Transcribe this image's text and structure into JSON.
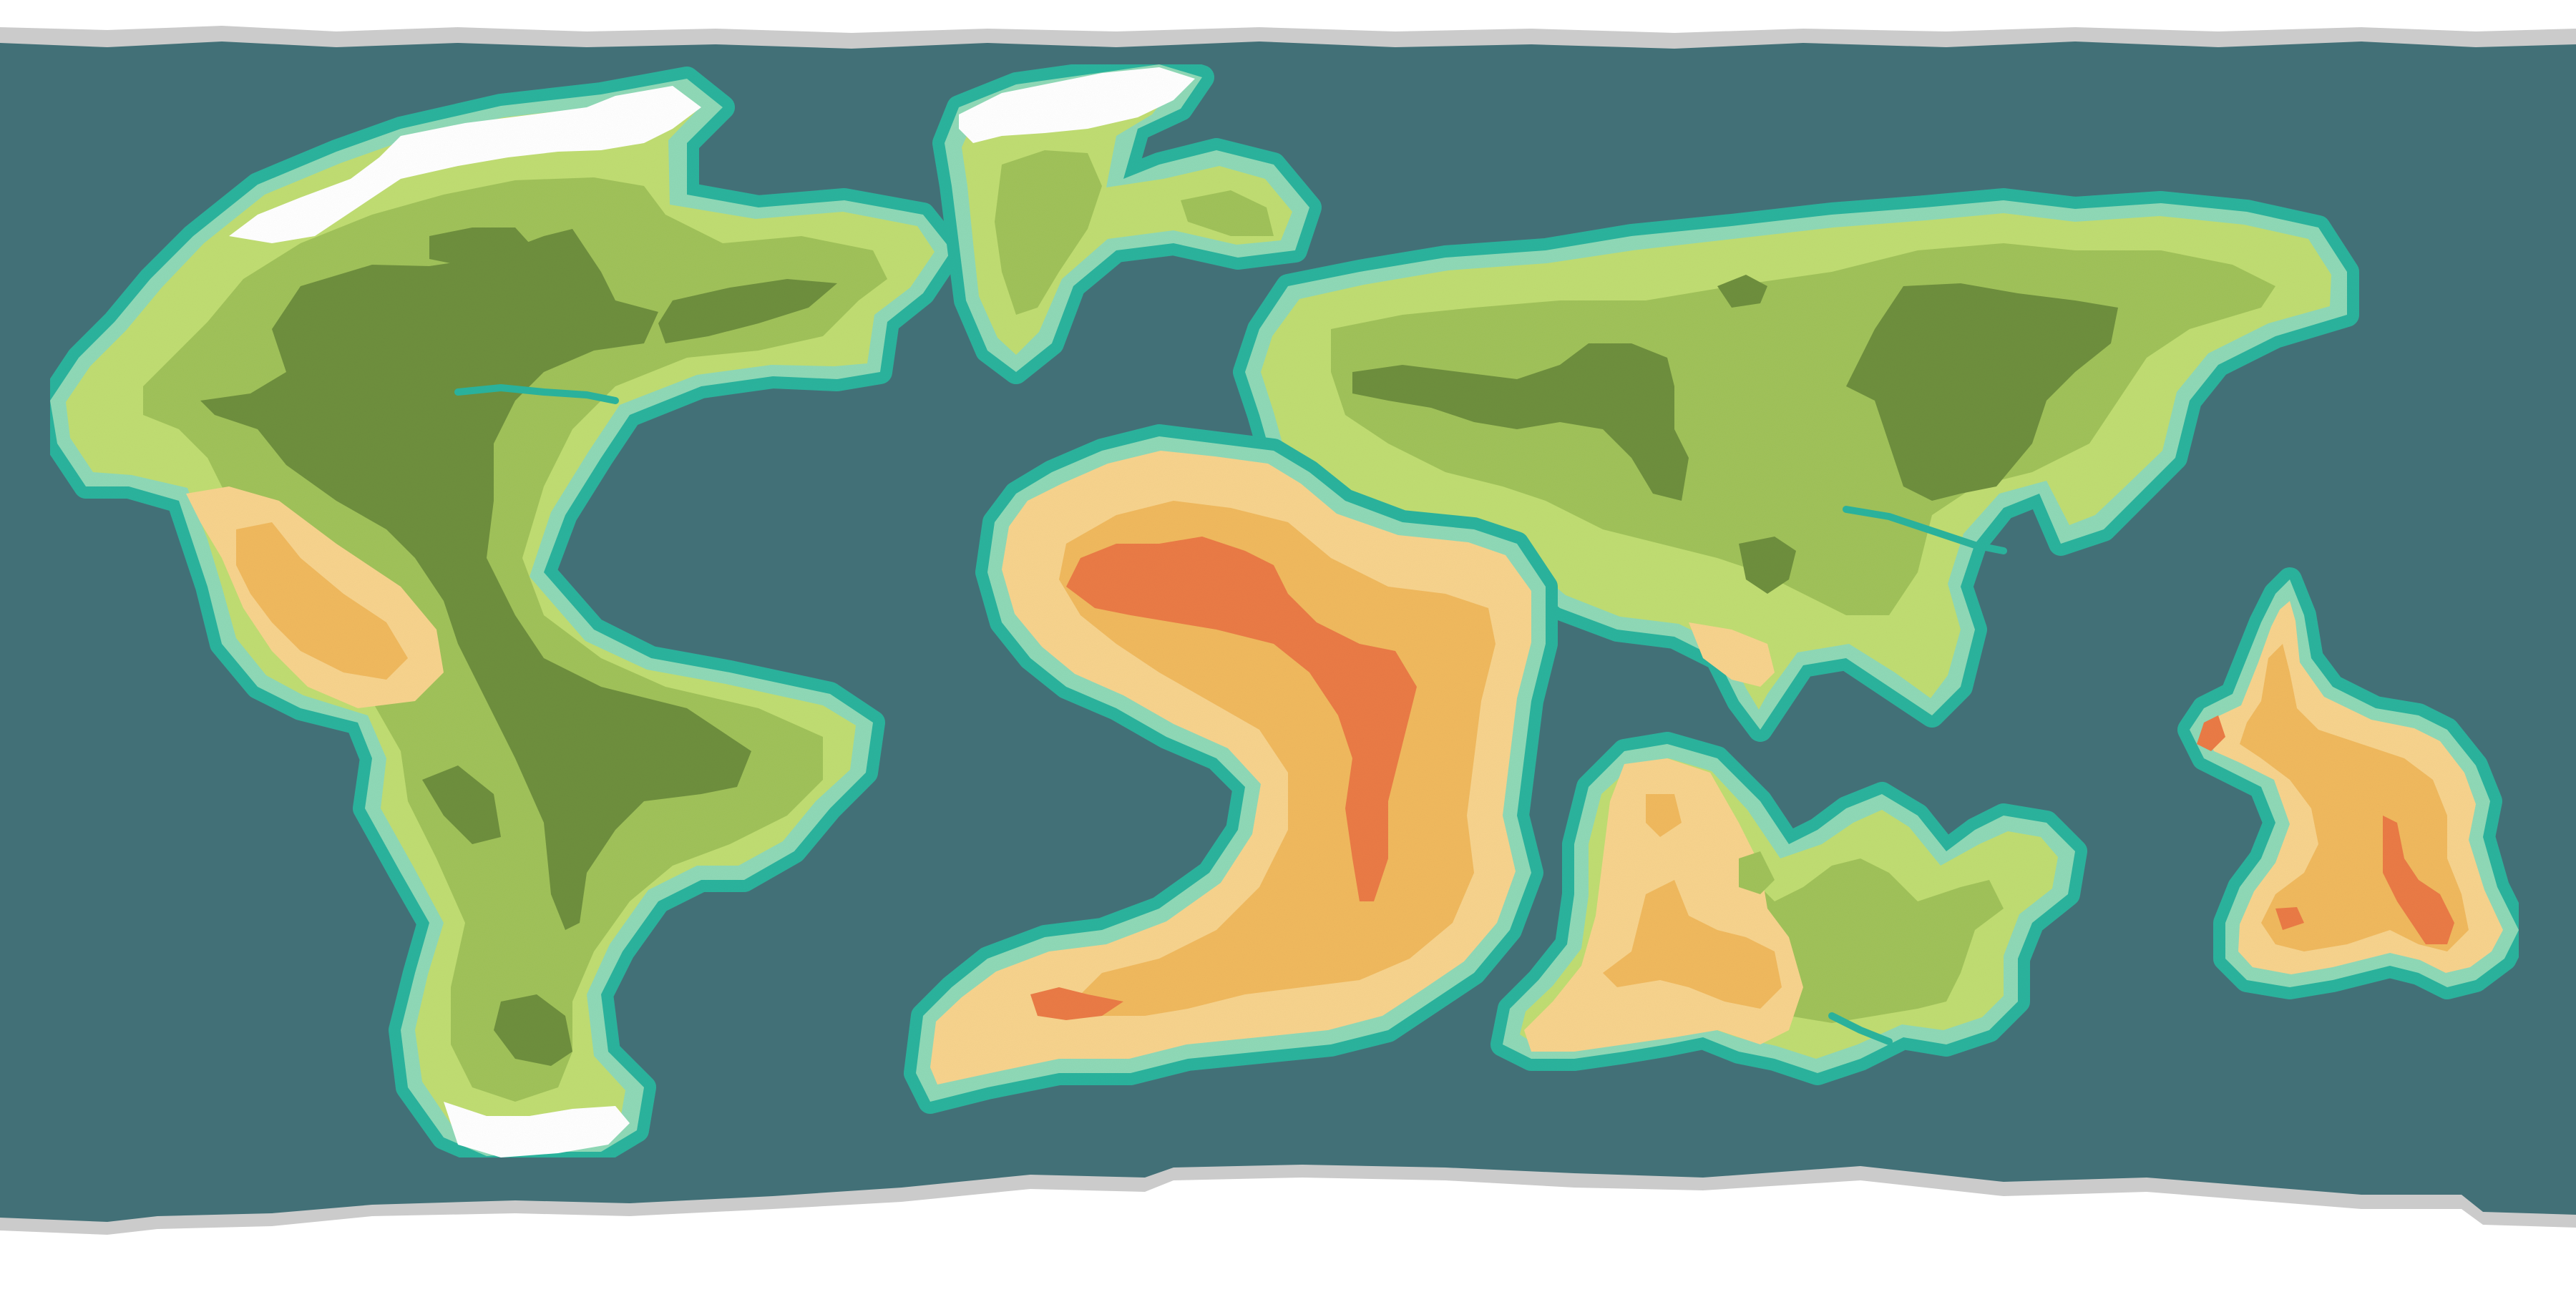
{
  "map": {
    "style": "flat-vector-fantasy-world-map",
    "colors": {
      "ocean": "#427077",
      "coast_ring": "#2bb39d",
      "shore": "#8fd9b7",
      "paper_edge": "#cbcbcb",
      "paper": "#ffffff",
      "ice": "#ffffff",
      "lowland": "#c0dd72",
      "upland": "#a0c25a",
      "forest": "#6e8f3e",
      "desert_light": "#f7d38d",
      "desert_mid": "#f0b95e",
      "desert_high": "#ea7b45"
    },
    "regions": [
      "northwest-continent",
      "north-island",
      "northeast-continent",
      "central-desert-continent",
      "south-continent",
      "east-island"
    ]
  }
}
